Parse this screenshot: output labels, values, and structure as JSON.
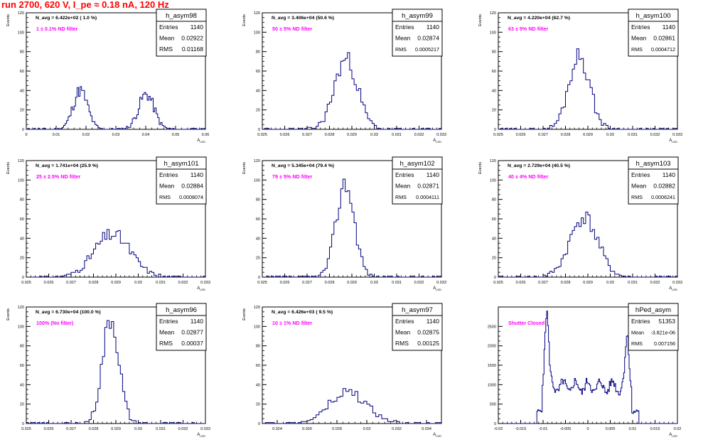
{
  "page_title": "run 2700,   620 V, I_pe ≈ 0.18 nA, 120 Hz",
  "colors": {
    "hist": "#000080",
    "note": "#ff00ff",
    "title": "#ff0000",
    "axis": "#000000"
  },
  "chart_data": [
    {
      "type": "histogram",
      "name": "h_asym98",
      "navg": "N_avg = 6.422e+02 ( 1.0 %)",
      "note": "1 ± 0.1% ND filter",
      "stats": [
        [
          "Entries",
          "1140"
        ],
        [
          "Mean",
          "0.02922"
        ],
        [
          "RMS",
          "0.01168"
        ]
      ],
      "xlabel": "A_LED",
      "ylabel": "Events",
      "xlim": [
        0,
        0.06
      ],
      "ylim": [
        0,
        120
      ],
      "xticks": [
        0,
        0.01,
        0.02,
        0.03,
        0.04,
        0.05,
        0.06
      ],
      "xticklabels": [
        "0",
        "0.01",
        "0.02",
        "0.03",
        "0.04",
        "0.05",
        "0.06"
      ],
      "yticks": [
        0,
        20,
        40,
        60,
        80,
        100,
        120
      ],
      "peaks": [
        {
          "mu": 0.0181,
          "sigma": 0.0024,
          "amp": 40,
          "seed": 11
        },
        {
          "mu": 0.0402,
          "sigma": 0.0026,
          "amp": 36,
          "seed": 17
        }
      ],
      "bin_width": 0.0005
    },
    {
      "type": "histogram",
      "name": "h_asym99",
      "navg": "N_avg = 3.406e+04 (50.6 %)",
      "note": "50 ± 5% ND filter",
      "stats": [
        [
          "Entries",
          "1140"
        ],
        [
          "Mean",
          "0.02874"
        ],
        [
          "RMS",
          "0.0005217"
        ]
      ],
      "xlabel": "A_LED",
      "ylabel": "Events",
      "xlim": [
        0.025,
        0.033
      ],
      "ylim": [
        0,
        120
      ],
      "xticks": [
        0.025,
        0.026,
        0.027,
        0.028,
        0.029,
        0.03,
        0.031,
        0.032,
        0.033
      ],
      "xticklabels": [
        "0.025",
        "0.026",
        "0.027",
        "0.028",
        "0.029",
        "0.03",
        "0.031",
        "0.032",
        "0.033"
      ],
      "yticks": [
        0,
        20,
        40,
        60,
        80,
        100,
        120
      ],
      "peaks": [
        {
          "mu": 0.02874,
          "sigma": 0.00052,
          "amp": 72,
          "seed": 23
        }
      ],
      "bin_width": 0.0001
    },
    {
      "type": "histogram",
      "name": "h_asym100",
      "navg": "N_avg = 4.220e+04 (62.7 %)",
      "note": "63 ± 5% ND filter",
      "stats": [
        [
          "Entries",
          "1140"
        ],
        [
          "Mean",
          "0.02861"
        ],
        [
          "RMS",
          "0.0004712"
        ]
      ],
      "xlabel": "A_LED",
      "ylabel": "Events",
      "xlim": [
        0.025,
        0.033
      ],
      "ylim": [
        0,
        120
      ],
      "xticks": [
        0.025,
        0.026,
        0.027,
        0.028,
        0.029,
        0.03,
        0.031,
        0.032,
        0.033
      ],
      "xticklabels": [
        "0.025",
        "0.026",
        "0.027",
        "0.028",
        "0.029",
        "0.03",
        "0.031",
        "0.032",
        "0.033"
      ],
      "yticks": [
        0,
        20,
        40,
        60,
        80,
        100,
        120
      ],
      "peaks": [
        {
          "mu": 0.02861,
          "sigma": 0.00047,
          "amp": 76,
          "seed": 29
        }
      ],
      "bin_width": 0.0001
    },
    {
      "type": "histogram",
      "name": "h_asym101",
      "navg": "N_avg = 1.741e+04 (25.9 %)",
      "note": "25 ± 2.5% ND filter",
      "stats": [
        [
          "Entries",
          "1140"
        ],
        [
          "Mean",
          "0.02884"
        ],
        [
          "RMS",
          "0.0008074"
        ]
      ],
      "xlabel": "A_LED",
      "ylabel": "Events",
      "xlim": [
        0.025,
        0.033
      ],
      "ylim": [
        0,
        120
      ],
      "xticks": [
        0.025,
        0.026,
        0.027,
        0.028,
        0.029,
        0.03,
        0.031,
        0.032,
        0.033
      ],
      "xticklabels": [
        "0.025",
        "0.026",
        "0.027",
        "0.028",
        "0.029",
        "0.03",
        "0.031",
        "0.032",
        "0.033"
      ],
      "yticks": [
        0,
        20,
        40,
        60,
        80,
        100,
        120
      ],
      "peaks": [
        {
          "mu": 0.02884,
          "sigma": 0.00081,
          "amp": 44,
          "seed": 31
        }
      ],
      "bin_width": 0.0001
    },
    {
      "type": "histogram",
      "name": "h_asym102",
      "navg": "N_avg = 5.345e+04 (79.4 %)",
      "note": "79 ± 5% ND filter",
      "stats": [
        [
          "Entries",
          "1140"
        ],
        [
          "Mean",
          "0.02871"
        ],
        [
          "RMS",
          "0.0004111"
        ]
      ],
      "xlabel": "A_LED",
      "ylabel": "Events",
      "xlim": [
        0.025,
        0.033
      ],
      "ylim": [
        0,
        120
      ],
      "xticks": [
        0.025,
        0.026,
        0.027,
        0.028,
        0.029,
        0.03,
        0.031,
        0.032,
        0.033
      ],
      "xticklabels": [
        "0.025",
        "0.026",
        "0.027",
        "0.028",
        "0.029",
        "0.03",
        "0.031",
        "0.032",
        "0.033"
      ],
      "yticks": [
        0,
        20,
        40,
        60,
        80,
        100,
        120
      ],
      "peaks": [
        {
          "mu": 0.02871,
          "sigma": 0.00041,
          "amp": 96,
          "seed": 37
        }
      ],
      "bin_width": 0.0001
    },
    {
      "type": "histogram",
      "name": "h_asym103",
      "navg": "N_avg = 2.729e+04 (40.5 %)",
      "note": "40 ± 4% ND filter",
      "stats": [
        [
          "Entries",
          "1140"
        ],
        [
          "Mean",
          "0.02882"
        ],
        [
          "RMS",
          "0.0006241"
        ]
      ],
      "xlabel": "A_LED",
      "ylabel": "Events",
      "xlim": [
        0.025,
        0.033
      ],
      "ylim": [
        0,
        120
      ],
      "xticks": [
        0.025,
        0.026,
        0.027,
        0.028,
        0.029,
        0.03,
        0.031,
        0.032,
        0.033
      ],
      "xticklabels": [
        "0.025",
        "0.026",
        "0.027",
        "0.028",
        "0.029",
        "0.03",
        "0.031",
        "0.032",
        "0.033"
      ],
      "yticks": [
        0,
        20,
        40,
        60,
        80,
        100,
        120
      ],
      "peaks": [
        {
          "mu": 0.02882,
          "sigma": 0.00062,
          "amp": 62,
          "seed": 41
        }
      ],
      "bin_width": 0.0001
    },
    {
      "type": "histogram",
      "name": "h_asym96",
      "navg": "N_avg = 6.730e+04 (100.0 %)",
      "note": "100% (No filter)",
      "stats": [
        [
          "Entries",
          "1140"
        ],
        [
          "Mean",
          "0.02877"
        ],
        [
          "RMS",
          "0.00037"
        ]
      ],
      "xlabel": "A_LED",
      "ylabel": "Events",
      "xlim": [
        0.025,
        0.033
      ],
      "ylim": [
        0,
        120
      ],
      "xticks": [
        0.025,
        0.026,
        0.027,
        0.028,
        0.029,
        0.03,
        0.031,
        0.032,
        0.033
      ],
      "xticklabels": [
        "0.025",
        "0.026",
        "0.027",
        "0.028",
        "0.029",
        "0.03",
        "0.031",
        "0.032",
        "0.033"
      ],
      "yticks": [
        0,
        20,
        40,
        60,
        80,
        100,
        120
      ],
      "peaks": [
        {
          "mu": 0.02877,
          "sigma": 0.00037,
          "amp": 108,
          "seed": 43
        }
      ],
      "bin_width": 0.0001
    },
    {
      "type": "histogram",
      "name": "h_asym97",
      "navg": "N_avg = 6.426e+03 ( 9.5 %)",
      "note": "10 ± 1% ND filter",
      "stats": [
        [
          "Entries",
          "1140"
        ],
        [
          "Mean",
          "0.02875"
        ],
        [
          "RMS",
          "0.00125"
        ]
      ],
      "xlabel": "A_LED",
      "ylabel": "Events",
      "xlim": [
        0.023,
        0.035
      ],
      "ylim": [
        0,
        120
      ],
      "xticks": [
        0.024,
        0.026,
        0.028,
        0.03,
        0.032,
        0.034
      ],
      "xticklabels": [
        "0.024",
        "0.026",
        "0.028",
        "0.03",
        "0.032",
        "0.034"
      ],
      "yticks": [
        0,
        20,
        40,
        60,
        80,
        100,
        120
      ],
      "peaks": [
        {
          "mu": 0.02875,
          "sigma": 0.00125,
          "amp": 32,
          "seed": 47
        }
      ],
      "bin_width": 0.0002
    },
    {
      "type": "histogram",
      "name": "hPed_asym",
      "navg": "",
      "note": "Shutter Closed",
      "stats": [
        [
          "Entries",
          "51353"
        ],
        [
          "Mean",
          "-3.821e-06"
        ],
        [
          "RMS",
          "0.007156"
        ]
      ],
      "xlabel": "A_LED",
      "ylabel": "",
      "xlim": [
        -0.02,
        0.02
      ],
      "ylim": [
        0,
        3000
      ],
      "xticks": [
        -0.02,
        -0.015,
        -0.01,
        -0.005,
        0,
        0.005,
        0.01,
        0.015,
        0.02
      ],
      "xticklabels": [
        "-0.02",
        "-0.015",
        "-0.01",
        "-0.005",
        "0",
        "0.005",
        "0.01",
        "0.015",
        "0.02"
      ],
      "yticks": [
        0,
        500,
        1000,
        1500,
        2000,
        2500
      ],
      "pedestal": true,
      "bin_width": 0.0002
    }
  ]
}
